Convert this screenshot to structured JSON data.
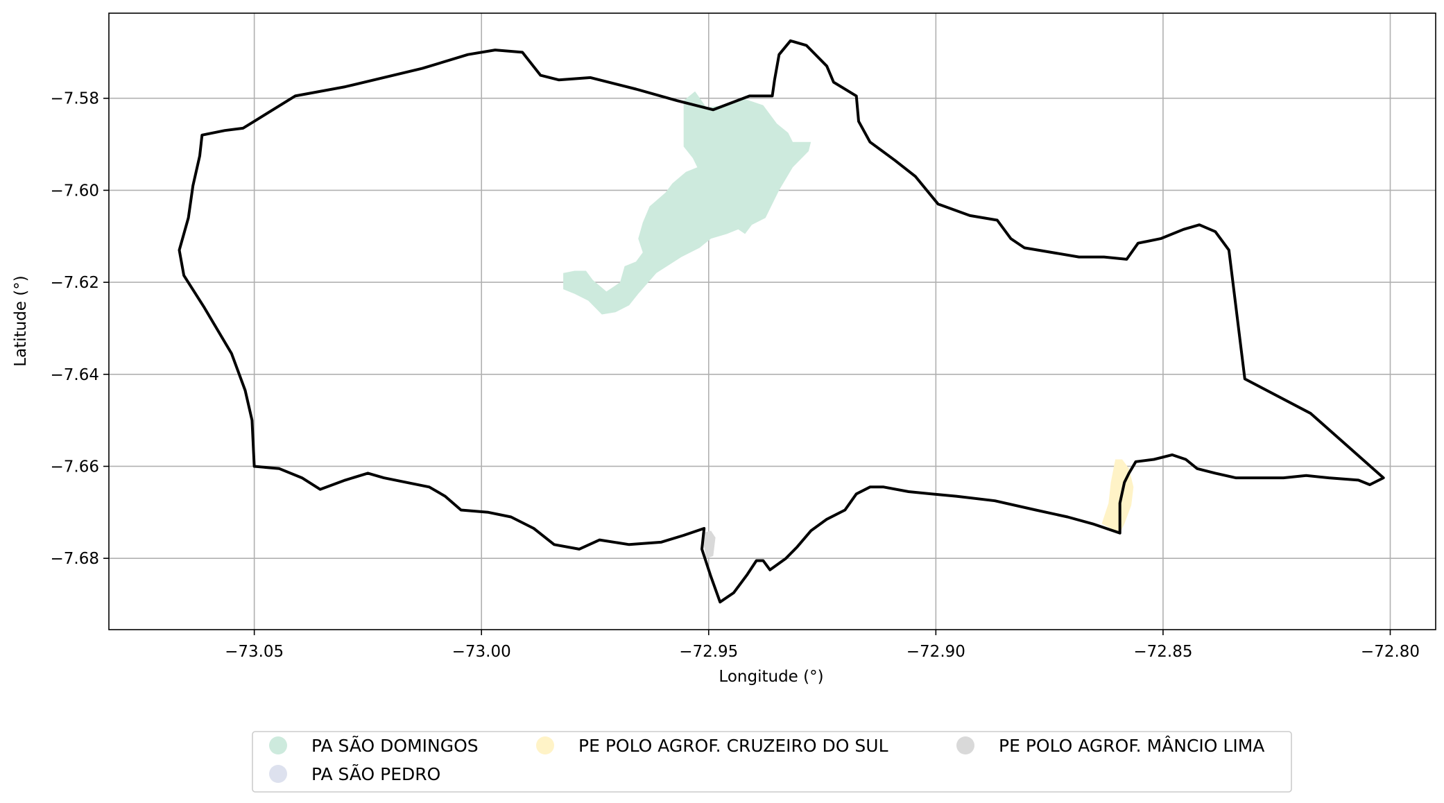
{
  "chart_data": {
    "type": "map",
    "xlabel": "Longitude (°)",
    "ylabel": "Latitude (°)",
    "xlim": [
      -73.082,
      -72.79
    ],
    "ylim": [
      -7.6955,
      -7.5615
    ],
    "grid": true,
    "xticks": [
      {
        "value": -73.05,
        "label": "−73.05"
      },
      {
        "value": -73.0,
        "label": "−73.00"
      },
      {
        "value": -72.95,
        "label": "−72.95"
      },
      {
        "value": -72.9,
        "label": "−72.90"
      },
      {
        "value": -72.85,
        "label": "−72.85"
      },
      {
        "value": -72.8,
        "label": "−72.80"
      }
    ],
    "yticks": [
      {
        "value": -7.58,
        "label": "−7.58"
      },
      {
        "value": -7.6,
        "label": "−7.60"
      },
      {
        "value": -7.62,
        "label": "−7.62"
      },
      {
        "value": -7.64,
        "label": "−7.64"
      },
      {
        "value": -7.66,
        "label": "−7.66"
      },
      {
        "value": -7.68,
        "label": "−7.68"
      }
    ],
    "legend_position": "bottom-center",
    "layers": [
      {
        "name": "PA SÃO DOMINGOS",
        "color": "#cdeadd",
        "coords": [
          [
            -72.953,
            -7.5785
          ],
          [
            -72.9505,
            -7.582
          ],
          [
            -72.9465,
            -7.5815
          ],
          [
            -72.9425,
            -7.58
          ],
          [
            -72.938,
            -7.5815
          ],
          [
            -72.935,
            -7.5855
          ],
          [
            -72.9325,
            -7.5875
          ],
          [
            -72.9315,
            -7.5895
          ],
          [
            -72.9275,
            -7.5895
          ],
          [
            -72.928,
            -7.5915
          ],
          [
            -72.9315,
            -7.595
          ],
          [
            -72.9345,
            -7.6
          ],
          [
            -72.9375,
            -7.606
          ],
          [
            -72.9405,
            -7.6075
          ],
          [
            -72.942,
            -7.6095
          ],
          [
            -72.9435,
            -7.6085
          ],
          [
            -72.946,
            -7.6095
          ],
          [
            -72.9495,
            -7.6105
          ],
          [
            -72.952,
            -7.6125
          ],
          [
            -72.956,
            -7.6145
          ],
          [
            -72.9615,
            -7.618
          ],
          [
            -72.9655,
            -7.6225
          ],
          [
            -72.9675,
            -7.625
          ],
          [
            -72.9705,
            -7.6265
          ],
          [
            -72.9735,
            -7.627
          ],
          [
            -72.9765,
            -7.624
          ],
          [
            -72.9795,
            -7.6225
          ],
          [
            -72.982,
            -7.6215
          ],
          [
            -72.982,
            -7.618
          ],
          [
            -72.9795,
            -7.6175
          ],
          [
            -72.977,
            -7.6175
          ],
          [
            -72.9755,
            -7.6195
          ],
          [
            -72.9725,
            -7.622
          ],
          [
            -72.9695,
            -7.62
          ],
          [
            -72.9685,
            -7.6165
          ],
          [
            -72.966,
            -7.6155
          ],
          [
            -72.9645,
            -7.6135
          ],
          [
            -72.9655,
            -7.6105
          ],
          [
            -72.9645,
            -7.607
          ],
          [
            -72.963,
            -7.6035
          ],
          [
            -72.9595,
            -7.6005
          ],
          [
            -72.958,
            -7.5985
          ],
          [
            -72.955,
            -7.596
          ],
          [
            -72.9525,
            -7.595
          ],
          [
            -72.9535,
            -7.593
          ],
          [
            -72.9555,
            -7.5905
          ],
          [
            -72.9555,
            -7.586
          ],
          [
            -72.9555,
            -7.5805
          ],
          [
            -72.953,
            -7.5785
          ]
        ]
      },
      {
        "name": "PE POLO AGROF. CRUZEIRO DO SUL",
        "color": "#fff3c7",
        "coords": [
          [
            -72.859,
            -7.6585
          ],
          [
            -72.8605,
            -7.6585
          ],
          [
            -72.8615,
            -7.6635
          ],
          [
            -72.862,
            -7.668
          ],
          [
            -72.8635,
            -7.6725
          ],
          [
            -72.8595,
            -7.6745
          ],
          [
            -72.8585,
            -7.6725
          ],
          [
            -72.857,
            -7.6685
          ],
          [
            -72.8565,
            -7.6645
          ],
          [
            -72.8575,
            -7.6605
          ],
          [
            -72.859,
            -7.6585
          ]
        ]
      },
      {
        "name": "PA SÃO PEDRO",
        "color": "#dde1ee",
        "coords": []
      },
      {
        "name": "PE POLO AGROF. MÂNCIO LIMA",
        "color": "#d9d9d9",
        "coords": [
          [
            -72.9515,
            -7.6745
          ],
          [
            -72.9495,
            -7.674
          ],
          [
            -72.9485,
            -7.6755
          ],
          [
            -72.949,
            -7.6795
          ],
          [
            -72.9505,
            -7.68
          ],
          [
            -72.951,
            -7.6775
          ],
          [
            -72.9515,
            -7.6745
          ]
        ]
      }
    ],
    "boundary": {
      "color": "#000000",
      "coords": [
        [
          -73.05,
          -7.585
        ],
        [
          -73.041,
          -7.5795
        ],
        [
          -73.03,
          -7.5775
        ],
        [
          -73.013,
          -7.5735
        ],
        [
          -73.003,
          -7.5705
        ],
        [
          -72.997,
          -7.5695
        ],
        [
          -72.991,
          -7.57
        ],
        [
          -72.987,
          -7.575
        ],
        [
          -72.983,
          -7.576
        ],
        [
          -72.976,
          -7.5755
        ],
        [
          -72.966,
          -7.578
        ],
        [
          -72.957,
          -7.5805
        ],
        [
          -72.949,
          -7.5825
        ],
        [
          -72.941,
          -7.5795
        ],
        [
          -72.936,
          -7.5795
        ],
        [
          -72.9355,
          -7.576
        ],
        [
          -72.9345,
          -7.5705
        ],
        [
          -72.932,
          -7.5675
        ],
        [
          -72.9285,
          -7.5685
        ],
        [
          -72.924,
          -7.573
        ],
        [
          -72.9225,
          -7.5765
        ],
        [
          -72.9175,
          -7.5795
        ],
        [
          -72.917,
          -7.585
        ],
        [
          -72.9145,
          -7.5895
        ],
        [
          -72.909,
          -7.5935
        ],
        [
          -72.9045,
          -7.597
        ],
        [
          -72.8995,
          -7.603
        ],
        [
          -72.8925,
          -7.6055
        ],
        [
          -72.8865,
          -7.6065
        ],
        [
          -72.8835,
          -7.6105
        ],
        [
          -72.8805,
          -7.6125
        ],
        [
          -72.8745,
          -7.6135
        ],
        [
          -72.8685,
          -7.6145
        ],
        [
          -72.863,
          -7.6145
        ],
        [
          -72.858,
          -7.615
        ],
        [
          -72.8555,
          -7.6115
        ],
        [
          -72.8505,
          -7.6105
        ],
        [
          -72.8455,
          -7.6085
        ],
        [
          -72.842,
          -7.6075
        ],
        [
          -72.8385,
          -7.609
        ],
        [
          -72.8355,
          -7.613
        ],
        [
          -72.832,
          -7.641
        ],
        [
          -72.8175,
          -7.6485
        ],
        [
          -72.8015,
          -7.6625
        ],
        [
          -72.8045,
          -7.664
        ],
        [
          -72.807,
          -7.663
        ],
        [
          -72.8135,
          -7.6625
        ],
        [
          -72.8185,
          -7.662
        ],
        [
          -72.8235,
          -7.6625
        ],
        [
          -72.829,
          -7.6625
        ],
        [
          -72.834,
          -7.6625
        ],
        [
          -72.8385,
          -7.6615
        ],
        [
          -72.8425,
          -7.6605
        ],
        [
          -72.845,
          -7.6585
        ],
        [
          -72.848,
          -7.6575
        ],
        [
          -72.852,
          -7.6585
        ],
        [
          -72.856,
          -7.659
        ],
        [
          -72.8575,
          -7.6615
        ],
        [
          -72.8585,
          -7.6635
        ],
        [
          -72.8595,
          -7.668
        ],
        [
          -72.8595,
          -7.6745
        ],
        [
          -72.8655,
          -7.6725
        ],
        [
          -72.871,
          -7.671
        ],
        [
          -72.878,
          -7.6695
        ],
        [
          -72.887,
          -7.6675
        ],
        [
          -72.8955,
          -7.6665
        ],
        [
          -72.901,
          -7.666
        ],
        [
          -72.906,
          -7.6655
        ],
        [
          -72.9115,
          -7.6645
        ],
        [
          -72.9145,
          -7.6645
        ],
        [
          -72.9175,
          -7.666
        ],
        [
          -72.92,
          -7.6695
        ],
        [
          -72.924,
          -7.6715
        ],
        [
          -72.9275,
          -7.674
        ],
        [
          -72.9305,
          -7.6775
        ],
        [
          -72.933,
          -7.68
        ],
        [
          -72.9365,
          -7.6825
        ],
        [
          -72.938,
          -7.6805
        ],
        [
          -72.9395,
          -7.6805
        ],
        [
          -72.9415,
          -7.6835
        ],
        [
          -72.9445,
          -7.6875
        ],
        [
          -72.9475,
          -7.6895
        ],
        [
          -72.9495,
          -7.684
        ],
        [
          -72.9515,
          -7.678
        ],
        [
          -72.951,
          -7.6735
        ],
        [
          -72.9555,
          -7.675
        ],
        [
          -72.9605,
          -7.6765
        ],
        [
          -72.9675,
          -7.677
        ],
        [
          -72.974,
          -7.676
        ],
        [
          -72.9785,
          -7.678
        ],
        [
          -72.984,
          -7.677
        ],
        [
          -72.9885,
          -7.6735
        ],
        [
          -72.9935,
          -7.671
        ],
        [
          -72.9985,
          -7.67
        ],
        [
          -73.0045,
          -7.6695
        ],
        [
          -73.008,
          -7.6665
        ],
        [
          -73.0115,
          -7.6645
        ],
        [
          -73.0165,
          -7.6635
        ],
        [
          -73.0215,
          -7.6625
        ],
        [
          -73.025,
          -7.6615
        ],
        [
          -73.03,
          -7.663
        ],
        [
          -73.0355,
          -7.665
        ],
        [
          -73.0395,
          -7.6625
        ],
        [
          -73.0445,
          -7.6605
        ],
        [
          -73.05,
          -7.66
        ],
        [
          -73.0505,
          -7.65
        ],
        [
          -73.052,
          -7.6435
        ],
        [
          -73.055,
          -7.6355
        ],
        [
          -73.061,
          -7.6255
        ],
        [
          -73.0655,
          -7.6185
        ],
        [
          -73.0665,
          -7.613
        ],
        [
          -73.0645,
          -7.606
        ],
        [
          -73.0635,
          -7.599
        ],
        [
          -73.062,
          -7.5925
        ],
        [
          -73.0615,
          -7.588
        ],
        [
          -73.0565,
          -7.587
        ],
        [
          -73.0525,
          -7.5865
        ],
        [
          -73.05,
          -7.585
        ]
      ]
    }
  }
}
